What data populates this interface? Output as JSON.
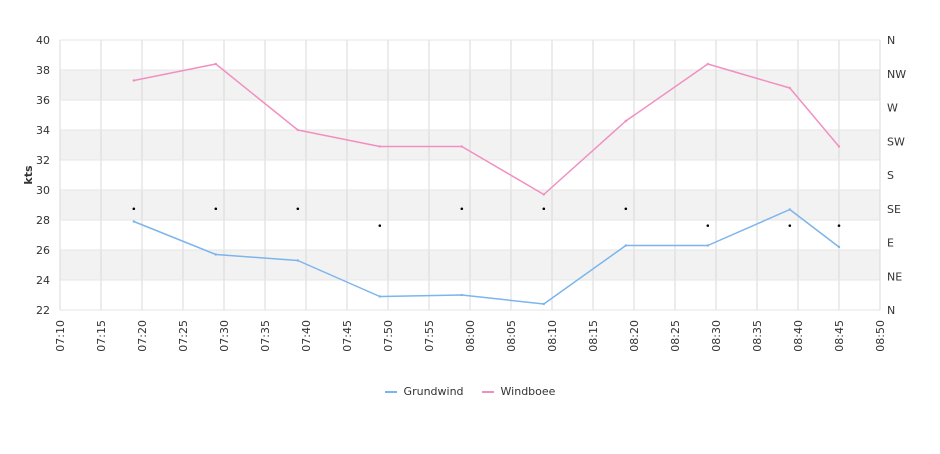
{
  "chart_data": {
    "type": "line",
    "title": "",
    "xlabel": "",
    "ylabel": "kts",
    "xlim": [
      "07:10",
      "08:50"
    ],
    "ylim": [
      22,
      40
    ],
    "x_ticks": [
      "07:10",
      "07:15",
      "07:20",
      "07:25",
      "07:30",
      "07:35",
      "07:40",
      "07:45",
      "07:50",
      "07:55",
      "08:00",
      "08:05",
      "08:10",
      "08:15",
      "08:20",
      "08:25",
      "08:30",
      "08:35",
      "08:40",
      "08:45",
      "08:50"
    ],
    "y_ticks": [
      22,
      24,
      26,
      28,
      30,
      32,
      34,
      36,
      38,
      40
    ],
    "y2_ticks": [
      "N",
      "NE",
      "E",
      "SE",
      "S",
      "SW",
      "W",
      "NW",
      "N"
    ],
    "legend_placement": "bottom-center",
    "grid": true,
    "series": [
      {
        "name": "Grundwind",
        "color": "#7cb5ec",
        "points": [
          {
            "x": "07:19",
            "y": 27.9
          },
          {
            "x": "07:29",
            "y": 25.7
          },
          {
            "x": "07:39",
            "y": 25.3
          },
          {
            "x": "07:49",
            "y": 22.9
          },
          {
            "x": "07:59",
            "y": 23.0
          },
          {
            "x": "08:09",
            "y": 22.4
          },
          {
            "x": "08:19",
            "y": 26.3
          },
          {
            "x": "08:29",
            "y": 26.3
          },
          {
            "x": "08:39",
            "y": 28.7
          },
          {
            "x": "08:45",
            "y": 26.2
          }
        ]
      },
      {
        "name": "Windboee",
        "color": "#f28fc0",
        "points": [
          {
            "x": "07:19",
            "y": 37.3
          },
          {
            "x": "07:29",
            "y": 38.4
          },
          {
            "x": "07:39",
            "y": 34.0
          },
          {
            "x": "07:49",
            "y": 32.9
          },
          {
            "x": "07:59",
            "y": 32.9
          },
          {
            "x": "08:09",
            "y": 29.7
          },
          {
            "x": "08:19",
            "y": 34.6
          },
          {
            "x": "08:29",
            "y": 38.4
          },
          {
            "x": "08:39",
            "y": 36.8
          },
          {
            "x": "08:45",
            "y": 32.9
          }
        ]
      }
    ],
    "direction_markers": [
      {
        "x": "07:19",
        "dir": "SE"
      },
      {
        "x": "07:29",
        "dir": "SE"
      },
      {
        "x": "07:39",
        "dir": "SE"
      },
      {
        "x": "07:49",
        "dir": "ESE"
      },
      {
        "x": "07:59",
        "dir": "SE"
      },
      {
        "x": "08:09",
        "dir": "SE"
      },
      {
        "x": "08:19",
        "dir": "SE"
      },
      {
        "x": "08:29",
        "dir": "ESE"
      },
      {
        "x": "08:39",
        "dir": "ESE"
      },
      {
        "x": "08:45",
        "dir": "ESE"
      }
    ]
  }
}
